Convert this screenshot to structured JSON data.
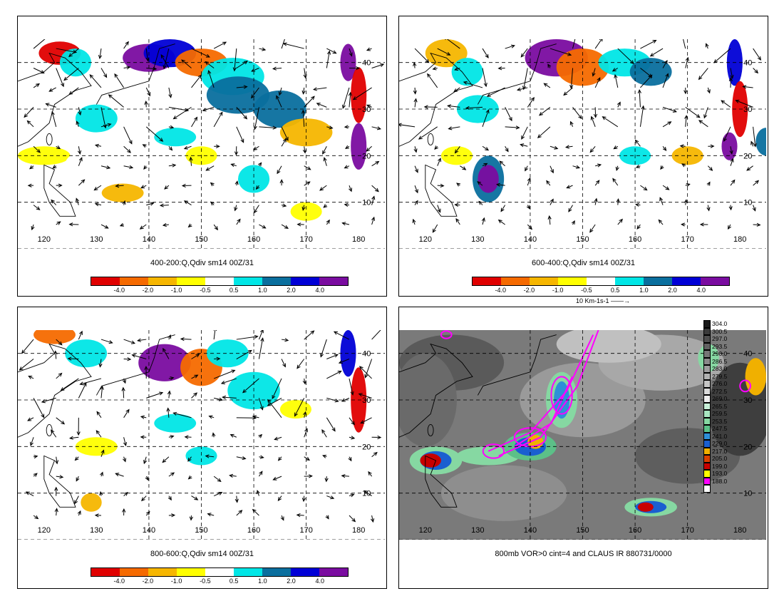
{
  "panels": [
    {
      "id": "p1",
      "caption": "400-200:Q,Qdiv sm14 00Z/31",
      "lon_labels": [
        "120",
        "130",
        "140",
        "150",
        "160",
        "170",
        "180"
      ],
      "lat_labels": [
        "40",
        "30",
        "20",
        "10"
      ],
      "colorbar": {
        "labels": [
          "-4.0",
          "-2.0",
          "-1.0",
          "-0.5",
          "0.5",
          "1.0",
          "2.0",
          "4.0"
        ],
        "colors": [
          "#e00000",
          "#f56a00",
          "#f6b600",
          "#ffff00",
          "#ffffff",
          "#00e6e6",
          "#0a6f9e",
          "#0000d6",
          "#7a0ca0"
        ]
      }
    },
    {
      "id": "p2",
      "caption": "600-400:Q,Qdiv sm14 00Z/31",
      "lon_labels": [
        "120",
        "130",
        "140",
        "150",
        "160",
        "170",
        "180"
      ],
      "lat_labels": [
        "40",
        "30",
        "20",
        "10"
      ],
      "colorbar": {
        "labels": [
          "-4.0",
          "-2.0",
          "-1.0",
          "-0.5",
          "0.5",
          "1.0",
          "2.0",
          "4.0"
        ],
        "colors": [
          "#e00000",
          "#f56a00",
          "#f6b600",
          "#ffff00",
          "#ffffff",
          "#00e6e6",
          "#0a6f9e",
          "#0000d6",
          "#7a0ca0"
        ]
      },
      "reference_vector": "10 Km-1s-1"
    },
    {
      "id": "p3",
      "caption": "800-600:Q,Qdiv sm14 00Z/31",
      "lon_labels": [
        "120",
        "130",
        "140",
        "150",
        "160",
        "170",
        "180"
      ],
      "lat_labels": [
        "40",
        "30",
        "20",
        "10"
      ],
      "colorbar": {
        "labels": [
          "-4.0",
          "-2.0",
          "-1.0",
          "-0.5",
          "0.5",
          "1.0",
          "2.0",
          "4.0"
        ],
        "colors": [
          "#e00000",
          "#f56a00",
          "#f6b600",
          "#ffff00",
          "#ffffff",
          "#00e6e6",
          "#0a6f9e",
          "#0000d6",
          "#7a0ca0"
        ]
      }
    },
    {
      "id": "p4",
      "caption": "800mb VOR>0 cint=4 and CLAUS IR 880731/0000",
      "lon_labels": [
        "120",
        "130",
        "140",
        "150",
        "160",
        "170",
        "180"
      ],
      "lat_labels": [
        "40",
        "30",
        "20",
        "10"
      ],
      "ir_scale": [
        {
          "label": "304.0",
          "color": "#1a1a1a"
        },
        {
          "label": "300.5",
          "color": "#3a3a3a"
        },
        {
          "label": "297.0",
          "color": "#4e4e4e"
        },
        {
          "label": "293.5",
          "color": "#626262"
        },
        {
          "label": "290.0",
          "color": "#767676"
        },
        {
          "label": "286.5",
          "color": "#8a8a8a"
        },
        {
          "label": "283.0",
          "color": "#9e9e9e"
        },
        {
          "label": "279.5",
          "color": "#b2b2b2"
        },
        {
          "label": "276.0",
          "color": "#c6c6c6"
        },
        {
          "label": "272.5",
          "color": "#dadada"
        },
        {
          "label": "269.0",
          "color": "#eeeeee"
        },
        {
          "label": "265.5",
          "color": "#c8f0d8"
        },
        {
          "label": "259.5",
          "color": "#a8e6c0"
        },
        {
          "label": "253.5",
          "color": "#86d8a2"
        },
        {
          "label": "247.5",
          "color": "#5cc088"
        },
        {
          "label": "241.0",
          "color": "#2e8fd8"
        },
        {
          "label": "229.0",
          "color": "#1a5fd0"
        },
        {
          "label": "217.0",
          "color": "#f0b000"
        },
        {
          "label": "205.0",
          "color": "#d84000"
        },
        {
          "label": "199.0",
          "color": "#c80000"
        },
        {
          "label": "193.0",
          "color": "#ffff00"
        },
        {
          "label": "188.0",
          "color": "#ff00ff"
        },
        {
          "label": "",
          "color": "#ffffff"
        }
      ]
    }
  ]
}
